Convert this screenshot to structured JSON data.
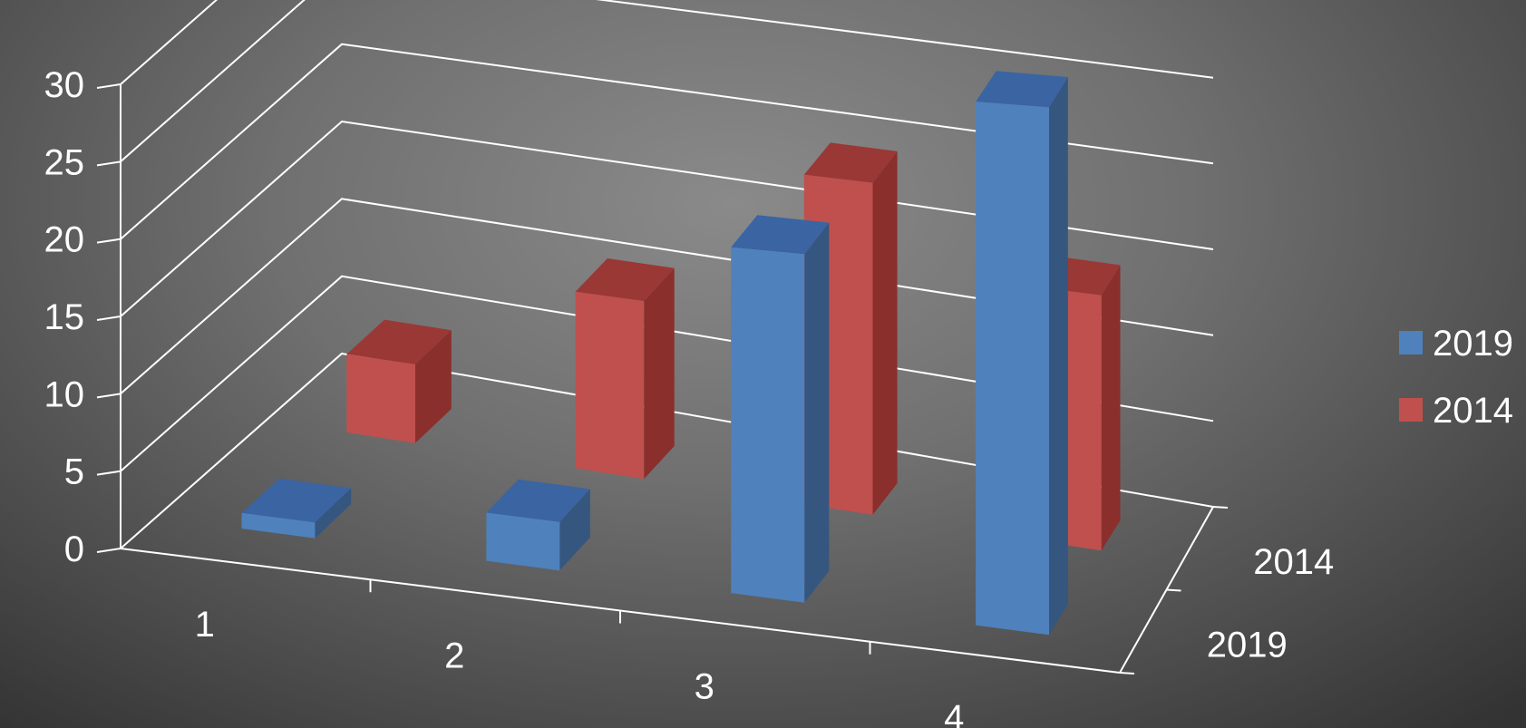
{
  "chart_data": {
    "type": "bar",
    "title": "",
    "xlabel": "",
    "ylabel": "",
    "categories": [
      "1",
      "2",
      "3",
      "4"
    ],
    "depth_categories": [
      "2019",
      "2014"
    ],
    "series": [
      {
        "name": "2019",
        "values": [
          1,
          3,
          21,
          31
        ],
        "color": "#4f81bd"
      },
      {
        "name": "2014",
        "values": [
          5,
          11,
          20,
          15
        ],
        "color": "#c0504d"
      }
    ],
    "y_ticks": [
      "0",
      "5",
      "10",
      "15",
      "20",
      "25",
      "30"
    ],
    "ylim": [
      0,
      30
    ],
    "grid": true,
    "legend_position": "right",
    "colors": {
      "2019_front": "#4f81bd",
      "2019_top": "#3b64a2",
      "2019_side": "#35567f",
      "2014_front": "#c0504d",
      "2014_top": "#9a3836",
      "2014_side": "#8a2f2c",
      "grid": "#ffffff",
      "text": "#ffffff"
    }
  },
  "legend": {
    "items": [
      {
        "label": "2019",
        "color": "#4f81bd"
      },
      {
        "label": "2014",
        "color": "#c0504d"
      }
    ]
  }
}
